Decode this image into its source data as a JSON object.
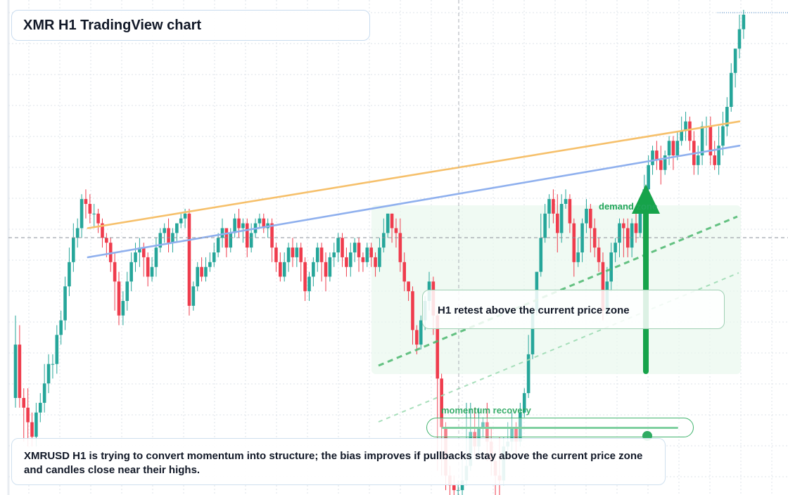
{
  "title": "XMR H1 TradingView chart",
  "annotations": {
    "retest": "H1 retest above the current price zone",
    "demand_label": "demand zone",
    "momentum_label": "momentum recovery",
    "momentum_level": 0.87,
    "summary": "XMRUSD H1 is trying to convert momentum into structure; the bias improves if pullbacks stay above the current price zone and candles close near their highs."
  },
  "colors": {
    "bull": "#26a69a",
    "bear": "#ef3c4d",
    "orange_trendline": "#f6c06b",
    "blue_trendline": "#8fb0ee",
    "accent_green": "#16a34a",
    "grid": "#dde3ea"
  },
  "chart_data": {
    "type": "candlestick",
    "symbol": "XMRUSD",
    "timeframe": "H1",
    "title": "XMR H1 TradingView chart",
    "grid": true,
    "crosshair": true,
    "ylim": [
      0,
      100
    ],
    "ohlc": [
      [
        20,
        31,
        18,
        37
      ],
      [
        31,
        20,
        18,
        35
      ],
      [
        20,
        18,
        11,
        22
      ],
      [
        18,
        15,
        10,
        22
      ],
      [
        15,
        12,
        10,
        17
      ],
      [
        12,
        17,
        10,
        19
      ],
      [
        17,
        19,
        15,
        21
      ],
      [
        19,
        23,
        17,
        27
      ],
      [
        23,
        27,
        21,
        29
      ],
      [
        27,
        27,
        24,
        29
      ],
      [
        27,
        33,
        25,
        35
      ],
      [
        33,
        36,
        31,
        38
      ],
      [
        36,
        43,
        34,
        45
      ],
      [
        43,
        48,
        41,
        51
      ],
      [
        48,
        53,
        46,
        56
      ],
      [
        53,
        55,
        51,
        57
      ],
      [
        55,
        61,
        53,
        62
      ],
      [
        61,
        60,
        57,
        63
      ],
      [
        60,
        58,
        56,
        62
      ],
      [
        58,
        58,
        55,
        60
      ],
      [
        58,
        56,
        54,
        59
      ],
      [
        56,
        53,
        51,
        57
      ],
      [
        53,
        52,
        49,
        54
      ],
      [
        52,
        48,
        46,
        53
      ],
      [
        48,
        44,
        38,
        50
      ],
      [
        44,
        37,
        35,
        46
      ],
      [
        37,
        40,
        35,
        42
      ],
      [
        40,
        44,
        38,
        46
      ],
      [
        44,
        48,
        42,
        50
      ],
      [
        48,
        50,
        46,
        52
      ],
      [
        50,
        51,
        47,
        53
      ],
      [
        51,
        49,
        45,
        52
      ],
      [
        49,
        45,
        43,
        50
      ],
      [
        45,
        47,
        44,
        49
      ],
      [
        47,
        51,
        45,
        53
      ],
      [
        51,
        54,
        50,
        55
      ],
      [
        54,
        55,
        52,
        56
      ],
      [
        55,
        52,
        50,
        57
      ],
      [
        52,
        54,
        50,
        55
      ],
      [
        54,
        56,
        52,
        56
      ],
      [
        56,
        57,
        55,
        58
      ],
      [
        57,
        58,
        55,
        59
      ],
      [
        58,
        39,
        37,
        59
      ],
      [
        39,
        43,
        38,
        44
      ],
      [
        43,
        47,
        42,
        48
      ],
      [
        47,
        45,
        44,
        49
      ],
      [
        45,
        47,
        44,
        49
      ],
      [
        47,
        48,
        46,
        50
      ],
      [
        48,
        50,
        47,
        52
      ],
      [
        50,
        53,
        49,
        54
      ],
      [
        53,
        55,
        51,
        57
      ],
      [
        55,
        51,
        49,
        55
      ],
      [
        51,
        54,
        50,
        55
      ],
      [
        54,
        57,
        53,
        58
      ],
      [
        57,
        55,
        53,
        59
      ],
      [
        55,
        56,
        52,
        57
      ],
      [
        56,
        51,
        49,
        57
      ],
      [
        51,
        54,
        50,
        56
      ],
      [
        54,
        56,
        53,
        57
      ],
      [
        56,
        57,
        55,
        58
      ],
      [
        57,
        55,
        54,
        58
      ],
      [
        55,
        56,
        53,
        57
      ],
      [
        56,
        51,
        48,
        57
      ],
      [
        51,
        48,
        46,
        52
      ],
      [
        48,
        45,
        44,
        50
      ],
      [
        45,
        48,
        44,
        50
      ],
      [
        48,
        51,
        46,
        52
      ],
      [
        51,
        49,
        47,
        53
      ],
      [
        49,
        51,
        47,
        52
      ],
      [
        51,
        48,
        44,
        52
      ],
      [
        48,
        42,
        40,
        49
      ],
      [
        42,
        45,
        40,
        46
      ],
      [
        45,
        48,
        43,
        49
      ],
      [
        48,
        51,
        46,
        52
      ],
      [
        51,
        48,
        44,
        52
      ],
      [
        48,
        45,
        42,
        50
      ],
      [
        45,
        49,
        44,
        50
      ],
      [
        49,
        50,
        47,
        52
      ],
      [
        50,
        53,
        48,
        54
      ],
      [
        53,
        49,
        47,
        54
      ],
      [
        49,
        47,
        45,
        51
      ],
      [
        47,
        50,
        45,
        52
      ],
      [
        50,
        52,
        48,
        53
      ],
      [
        52,
        49,
        46,
        53
      ],
      [
        49,
        48,
        46,
        50
      ],
      [
        48,
        51,
        47,
        52
      ],
      [
        51,
        49,
        47,
        52
      ],
      [
        49,
        47,
        45,
        50
      ],
      [
        47,
        51,
        46,
        53
      ],
      [
        51,
        54,
        50,
        57
      ],
      [
        54,
        58,
        53,
        58
      ],
      [
        58,
        55,
        52,
        58
      ],
      [
        55,
        54,
        51,
        57
      ],
      [
        54,
        48,
        46,
        57
      ],
      [
        48,
        44,
        42,
        50
      ],
      [
        44,
        42,
        40,
        44
      ],
      [
        42,
        34,
        31,
        43
      ],
      [
        34,
        31,
        29,
        35
      ],
      [
        31,
        36,
        30,
        37
      ],
      [
        36,
        40,
        34,
        41
      ],
      [
        40,
        44,
        38,
        46
      ],
      [
        44,
        37,
        33,
        45
      ],
      [
        37,
        24,
        5,
        38
      ],
      [
        24,
        14,
        4,
        25
      ],
      [
        14,
        4,
        1,
        15
      ],
      [
        4,
        2,
        0,
        6
      ],
      [
        2,
        1,
        0,
        4
      ],
      [
        1,
        1,
        0,
        3
      ],
      [
        1,
        3,
        0,
        9
      ],
      [
        3,
        6,
        2,
        19
      ],
      [
        6,
        13,
        5,
        19
      ],
      [
        13,
        10,
        8,
        18
      ],
      [
        10,
        14,
        8,
        18
      ],
      [
        14,
        15,
        12,
        16
      ],
      [
        15,
        11,
        7,
        19
      ],
      [
        11,
        7,
        4,
        14
      ],
      [
        7,
        4,
        0,
        9
      ],
      [
        4,
        3,
        0,
        12
      ],
      [
        3,
        10,
        2,
        12
      ],
      [
        10,
        11,
        8,
        15
      ],
      [
        11,
        14,
        9,
        17
      ],
      [
        14,
        11,
        8,
        15
      ],
      [
        11,
        17,
        10,
        19
      ],
      [
        17,
        21,
        16,
        22
      ],
      [
        21,
        29,
        20,
        33
      ],
      [
        29,
        38,
        28,
        39
      ],
      [
        38,
        46,
        37,
        46
      ],
      [
        46,
        53,
        45,
        58
      ],
      [
        53,
        58,
        52,
        60
      ],
      [
        58,
        61,
        55,
        62
      ],
      [
        61,
        58,
        56,
        63
      ],
      [
        58,
        54,
        50,
        62
      ],
      [
        54,
        60,
        52,
        62
      ],
      [
        60,
        61,
        59,
        63
      ],
      [
        61,
        56,
        54,
        62
      ],
      [
        56,
        48,
        45,
        57
      ],
      [
        48,
        50,
        47,
        53
      ],
      [
        50,
        56,
        48,
        57
      ],
      [
        56,
        59,
        54,
        61
      ],
      [
        59,
        55,
        50,
        60
      ],
      [
        55,
        51,
        49,
        57
      ],
      [
        51,
        48,
        46,
        53
      ],
      [
        48,
        38,
        36,
        50
      ],
      [
        38,
        44,
        37,
        47
      ],
      [
        44,
        50,
        42,
        52
      ],
      [
        50,
        52,
        48,
        53
      ],
      [
        52,
        56,
        49,
        57
      ],
      [
        56,
        55,
        49,
        57
      ],
      [
        55,
        51,
        49,
        57
      ],
      [
        51,
        56,
        49,
        57
      ],
      [
        56,
        54,
        52,
        58
      ],
      [
        54,
        59,
        53,
        60
      ],
      [
        59,
        63,
        58,
        66
      ],
      [
        63,
        68,
        62,
        70
      ],
      [
        68,
        71,
        66,
        72
      ],
      [
        71,
        69,
        67,
        73
      ],
      [
        69,
        67,
        64,
        72
      ],
      [
        67,
        70,
        66,
        71
      ],
      [
        70,
        73,
        68,
        74
      ],
      [
        73,
        70,
        67,
        74
      ],
      [
        70,
        73,
        69,
        75
      ],
      [
        73,
        75,
        72,
        78
      ],
      [
        75,
        77,
        73,
        79
      ],
      [
        77,
        73,
        71,
        78
      ],
      [
        73,
        68,
        66,
        75
      ],
      [
        68,
        70,
        66,
        72
      ],
      [
        70,
        76,
        68,
        77
      ],
      [
        76,
        76,
        72,
        78
      ],
      [
        76,
        70,
        68,
        78
      ],
      [
        70,
        68,
        67,
        73
      ],
      [
        68,
        72,
        66,
        76
      ],
      [
        72,
        76,
        70,
        79
      ],
      [
        76,
        80,
        74,
        82
      ],
      [
        80,
        87,
        79,
        89
      ],
      [
        87,
        92,
        84,
        92
      ],
      [
        92,
        96,
        90,
        99
      ],
      [
        96,
        99,
        94,
        100
      ]
    ],
    "trendlines": [
      {
        "name": "upper trendline",
        "from": [
          35,
          55
        ],
        "to": [
          260,
          77
        ]
      },
      {
        "name": "lower trendline",
        "from": [
          35,
          49
        ],
        "to": [
          260,
          72
        ]
      }
    ]
  }
}
